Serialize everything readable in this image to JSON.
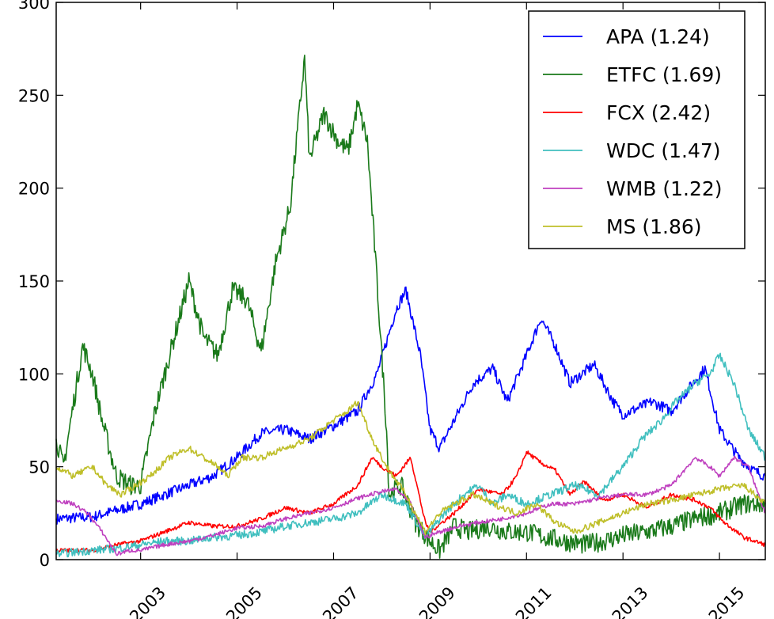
{
  "chart_data": {
    "type": "line",
    "xlim": [
      2001.25,
      2015.95
    ],
    "ylim": [
      0,
      300
    ],
    "x_ticks": [
      2003,
      2005,
      2007,
      2009,
      2011,
      2013,
      2015
    ],
    "x_tick_labels": [
      "2003",
      "2005",
      "2007",
      "2009",
      "2011",
      "2013",
      "2015"
    ],
    "y_ticks": [
      0,
      50,
      100,
      150,
      200,
      250,
      300
    ],
    "y_tick_labels": [
      "0",
      "50",
      "100",
      "150",
      "200",
      "250",
      "300"
    ],
    "grid": false,
    "legend_position": "top-right",
    "series": [
      {
        "name": "APA (1.24)",
        "color": "#0000ff",
        "points": [
          [
            2001.25,
            22
          ],
          [
            2002.0,
            23
          ],
          [
            2003.0,
            30
          ],
          [
            2004.0,
            40
          ],
          [
            2004.5,
            45
          ],
          [
            2005.0,
            55
          ],
          [
            2005.5,
            68
          ],
          [
            2006.0,
            70
          ],
          [
            2006.5,
            65
          ],
          [
            2007.0,
            72
          ],
          [
            2007.5,
            80
          ],
          [
            2007.9,
            100
          ],
          [
            2008.3,
            135
          ],
          [
            2008.5,
            145
          ],
          [
            2008.8,
            110
          ],
          [
            2009.0,
            70
          ],
          [
            2009.2,
            60
          ],
          [
            2009.6,
            80
          ],
          [
            2009.9,
            95
          ],
          [
            2010.3,
            103
          ],
          [
            2010.6,
            85
          ],
          [
            2011.0,
            110
          ],
          [
            2011.3,
            130
          ],
          [
            2011.6,
            115
          ],
          [
            2011.9,
            95
          ],
          [
            2012.4,
            105
          ],
          [
            2012.8,
            85
          ],
          [
            2013.0,
            78
          ],
          [
            2013.6,
            85
          ],
          [
            2014.0,
            80
          ],
          [
            2014.3,
            90
          ],
          [
            2014.7,
            103
          ],
          [
            2015.0,
            70
          ],
          [
            2015.4,
            55
          ],
          [
            2015.7,
            48
          ],
          [
            2015.95,
            45
          ]
        ]
      },
      {
        "name": "ETFC (1.69)",
        "color": "#1a7a1a",
        "points": [
          [
            2001.25,
            65
          ],
          [
            2001.4,
            50
          ],
          [
            2001.8,
            115
          ],
          [
            2002.0,
            100
          ],
          [
            2002.2,
            75
          ],
          [
            2002.5,
            45
          ],
          [
            2002.8,
            40
          ],
          [
            2003.0,
            40
          ],
          [
            2003.3,
            80
          ],
          [
            2003.6,
            110
          ],
          [
            2004.0,
            150
          ],
          [
            2004.3,
            120
          ],
          [
            2004.6,
            110
          ],
          [
            2004.9,
            145
          ],
          [
            2005.2,
            140
          ],
          [
            2005.5,
            112
          ],
          [
            2005.8,
            160
          ],
          [
            2006.1,
            190
          ],
          [
            2006.4,
            270
          ],
          [
            2006.5,
            215
          ],
          [
            2006.8,
            240
          ],
          [
            2007.1,
            225
          ],
          [
            2007.3,
            220
          ],
          [
            2007.5,
            245
          ],
          [
            2007.7,
            225
          ],
          [
            2007.9,
            150
          ],
          [
            2008.1,
            70
          ],
          [
            2008.15,
            35
          ],
          [
            2008.4,
            40
          ],
          [
            2008.7,
            20
          ],
          [
            2009.0,
            10
          ],
          [
            2009.2,
            5
          ],
          [
            2009.5,
            18
          ],
          [
            2009.8,
            15
          ],
          [
            2010.2,
            18
          ],
          [
            2010.6,
            15
          ],
          [
            2011.0,
            15
          ],
          [
            2011.4,
            12
          ],
          [
            2011.8,
            10
          ],
          [
            2012.2,
            8
          ],
          [
            2012.6,
            10
          ],
          [
            2013.0,
            13
          ],
          [
            2013.5,
            15
          ],
          [
            2014.0,
            18
          ],
          [
            2014.5,
            22
          ],
          [
            2015.0,
            25
          ],
          [
            2015.5,
            30
          ],
          [
            2015.95,
            30
          ]
        ]
      },
      {
        "name": "FCX (2.42)",
        "color": "#ff0000",
        "points": [
          [
            2001.25,
            5
          ],
          [
            2002.0,
            5
          ],
          [
            2002.5,
            8
          ],
          [
            2003.0,
            10
          ],
          [
            2003.5,
            15
          ],
          [
            2004.0,
            20
          ],
          [
            2004.5,
            18
          ],
          [
            2005.0,
            18
          ],
          [
            2005.5,
            22
          ],
          [
            2006.0,
            28
          ],
          [
            2006.5,
            25
          ],
          [
            2007.0,
            30
          ],
          [
            2007.5,
            40
          ],
          [
            2007.8,
            55
          ],
          [
            2008.0,
            50
          ],
          [
            2008.3,
            45
          ],
          [
            2008.6,
            55
          ],
          [
            2008.9,
            20
          ],
          [
            2009.0,
            15
          ],
          [
            2009.5,
            25
          ],
          [
            2010.0,
            38
          ],
          [
            2010.5,
            35
          ],
          [
            2010.8,
            45
          ],
          [
            2011.0,
            58
          ],
          [
            2011.3,
            52
          ],
          [
            2011.6,
            48
          ],
          [
            2011.9,
            35
          ],
          [
            2012.2,
            42
          ],
          [
            2012.6,
            32
          ],
          [
            2013.0,
            35
          ],
          [
            2013.5,
            28
          ],
          [
            2014.0,
            35
          ],
          [
            2014.5,
            32
          ],
          [
            2014.8,
            28
          ],
          [
            2015.1,
            20
          ],
          [
            2015.5,
            12
          ],
          [
            2015.95,
            8
          ]
        ]
      },
      {
        "name": "WDC (1.47)",
        "color": "#40bfbf",
        "points": [
          [
            2001.25,
            3
          ],
          [
            2002.0,
            5
          ],
          [
            2002.5,
            6
          ],
          [
            2003.0,
            8
          ],
          [
            2003.5,
            10
          ],
          [
            2004.0,
            10
          ],
          [
            2004.5,
            12
          ],
          [
            2005.0,
            13
          ],
          [
            2005.5,
            15
          ],
          [
            2006.0,
            18
          ],
          [
            2006.5,
            20
          ],
          [
            2007.0,
            22
          ],
          [
            2007.5,
            25
          ],
          [
            2008.0,
            35
          ],
          [
            2008.5,
            30
          ],
          [
            2008.9,
            12
          ],
          [
            2009.3,
            25
          ],
          [
            2009.7,
            35
          ],
          [
            2010.0,
            40
          ],
          [
            2010.3,
            30
          ],
          [
            2010.6,
            35
          ],
          [
            2011.0,
            30
          ],
          [
            2011.5,
            35
          ],
          [
            2012.0,
            40
          ],
          [
            2012.5,
            35
          ],
          [
            2013.0,
            50
          ],
          [
            2013.4,
            65
          ],
          [
            2013.8,
            75
          ],
          [
            2014.1,
            85
          ],
          [
            2014.5,
            95
          ],
          [
            2014.8,
            100
          ],
          [
            2015.0,
            110
          ],
          [
            2015.3,
            95
          ],
          [
            2015.6,
            70
          ],
          [
            2015.95,
            55
          ]
        ]
      },
      {
        "name": "WMB (1.22)",
        "color": "#bf40bf",
        "points": [
          [
            2001.25,
            32
          ],
          [
            2001.6,
            30
          ],
          [
            2001.9,
            25
          ],
          [
            2002.2,
            15
          ],
          [
            2002.5,
            3
          ],
          [
            2002.8,
            5
          ],
          [
            2003.0,
            5
          ],
          [
            2003.5,
            8
          ],
          [
            2004.0,
            10
          ],
          [
            2004.5,
            13
          ],
          [
            2005.0,
            17
          ],
          [
            2005.5,
            18
          ],
          [
            2006.0,
            22
          ],
          [
            2006.5,
            25
          ],
          [
            2007.0,
            28
          ],
          [
            2007.5,
            33
          ],
          [
            2007.9,
            36
          ],
          [
            2008.3,
            38
          ],
          [
            2008.6,
            30
          ],
          [
            2008.9,
            12
          ],
          [
            2009.2,
            15
          ],
          [
            2009.6,
            18
          ],
          [
            2010.0,
            20
          ],
          [
            2010.5,
            22
          ],
          [
            2011.0,
            25
          ],
          [
            2011.5,
            30
          ],
          [
            2012.0,
            30
          ],
          [
            2012.5,
            33
          ],
          [
            2013.0,
            35
          ],
          [
            2013.5,
            35
          ],
          [
            2014.0,
            40
          ],
          [
            2014.5,
            55
          ],
          [
            2014.8,
            50
          ],
          [
            2015.0,
            45
          ],
          [
            2015.3,
            55
          ],
          [
            2015.6,
            50
          ],
          [
            2015.95,
            25
          ]
        ]
      },
      {
        "name": "MS (1.86)",
        "color": "#bfbf2a",
        "points": [
          [
            2001.25,
            50
          ],
          [
            2001.6,
            45
          ],
          [
            2002.0,
            50
          ],
          [
            2002.3,
            40
          ],
          [
            2002.6,
            35
          ],
          [
            2002.9,
            40
          ],
          [
            2003.2,
            45
          ],
          [
            2003.6,
            55
          ],
          [
            2004.0,
            60
          ],
          [
            2004.3,
            55
          ],
          [
            2004.6,
            50
          ],
          [
            2004.8,
            45
          ],
          [
            2005.1,
            55
          ],
          [
            2005.5,
            55
          ],
          [
            2006.0,
            60
          ],
          [
            2006.5,
            65
          ],
          [
            2007.0,
            75
          ],
          [
            2007.3,
            80
          ],
          [
            2007.5,
            85
          ],
          [
            2007.8,
            65
          ],
          [
            2008.1,
            50
          ],
          [
            2008.5,
            35
          ],
          [
            2008.9,
            15
          ],
          [
            2009.2,
            25
          ],
          [
            2009.5,
            30
          ],
          [
            2009.9,
            35
          ],
          [
            2010.3,
            30
          ],
          [
            2010.8,
            25
          ],
          [
            2011.2,
            30
          ],
          [
            2011.6,
            20
          ],
          [
            2012.0,
            15
          ],
          [
            2012.5,
            20
          ],
          [
            2013.0,
            25
          ],
          [
            2013.5,
            30
          ],
          [
            2014.0,
            32
          ],
          [
            2014.5,
            35
          ],
          [
            2015.0,
            38
          ],
          [
            2015.5,
            40
          ],
          [
            2015.95,
            30
          ]
        ]
      }
    ]
  }
}
